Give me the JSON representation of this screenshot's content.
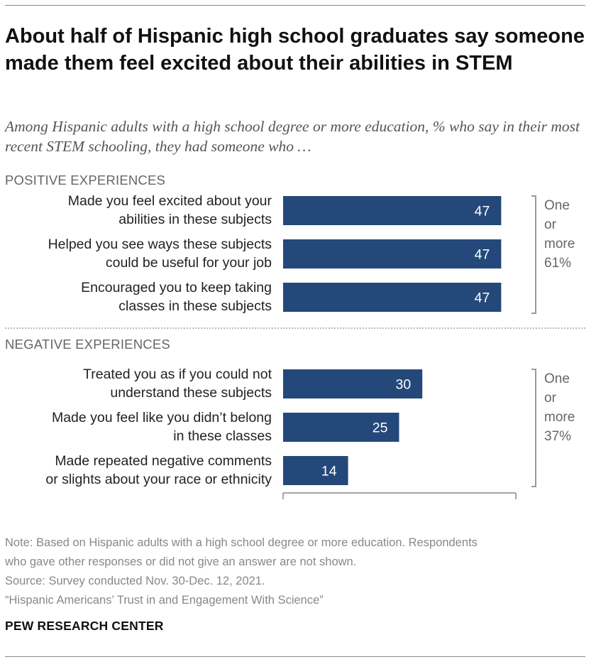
{
  "title": "About half of Hispanic high school graduates say someone made them feel excited about their abilities in STEM",
  "subtitle": "Among Hispanic adults with a high school degree or more education, % who say in their most recent STEM schooling, they had someone who …",
  "chart_data": {
    "type": "bar",
    "orientation": "horizontal",
    "bar_color": "#24487a",
    "xlim": [
      0,
      100
    ],
    "groups": [
      {
        "heading": "POSITIVE EXPERIENCES",
        "bracket_label": [
          "One",
          "or",
          "more",
          "61%"
        ],
        "bracket_value": 61,
        "items": [
          {
            "label": [
              "Made you feel excited about your",
              "abilities in these subjects"
            ],
            "value": 47
          },
          {
            "label": [
              "Helped you see ways these subjects",
              "could be useful for your job"
            ],
            "value": 47
          },
          {
            "label": [
              "Encouraged you to keep taking",
              "classes in these subjects"
            ],
            "value": 47
          }
        ]
      },
      {
        "heading": "NEGATIVE EXPERIENCES",
        "bracket_label": [
          "One",
          "or",
          "more",
          "37%"
        ],
        "bracket_value": 37,
        "items": [
          {
            "label": [
              "Treated you as if you could not",
              "understand these subjects"
            ],
            "value": 30
          },
          {
            "label": [
              "Made you feel like you didn’t belong",
              "in these classes"
            ],
            "value": 25
          },
          {
            "label": [
              "Made repeated negative comments",
              "or slights about your race or ethnicity"
            ],
            "value": 14
          }
        ]
      }
    ]
  },
  "notes": [
    "Note: Based on Hispanic adults with a high school degree or more education. Respondents",
    "who gave other responses or did not give an answer are not shown.",
    "Source: Survey conducted Nov. 30-Dec. 12, 2021.",
    "“Hispanic Americans’ Trust in and Engagement With Science”"
  ],
  "org": "PEW RESEARCH CENTER"
}
